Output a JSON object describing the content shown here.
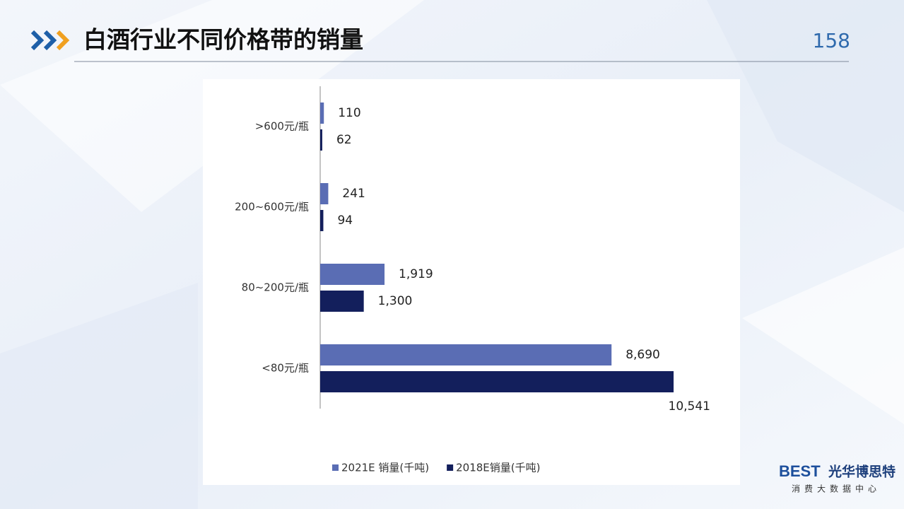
{
  "header": {
    "title": "白酒行业不同价格带的销量",
    "page": "158"
  },
  "chart_data": {
    "type": "bar",
    "orientation": "horizontal",
    "categories": [
      ">600元/瓶",
      "200~600元/瓶",
      "80~200元/瓶",
      "<80元/瓶"
    ],
    "series": [
      {
        "name": "2021E 销量(千吨)",
        "color": "#5a6db4",
        "values": [
          110,
          241,
          1919,
          8690
        ],
        "value_labels": [
          "110",
          "241",
          "1,919",
          "8,690"
        ]
      },
      {
        "name": "2018E销量(千吨)",
        "color": "#131f5c",
        "values": [
          62,
          94,
          1300,
          10541
        ],
        "value_labels": [
          "62",
          "94",
          "1,300",
          "10,541"
        ]
      }
    ],
    "xlim": [
      0,
      10541
    ],
    "legend": "bottom"
  },
  "logo": {
    "brand": "BEST",
    "name": "光华博思特",
    "tagline": "消费大数据中心"
  }
}
